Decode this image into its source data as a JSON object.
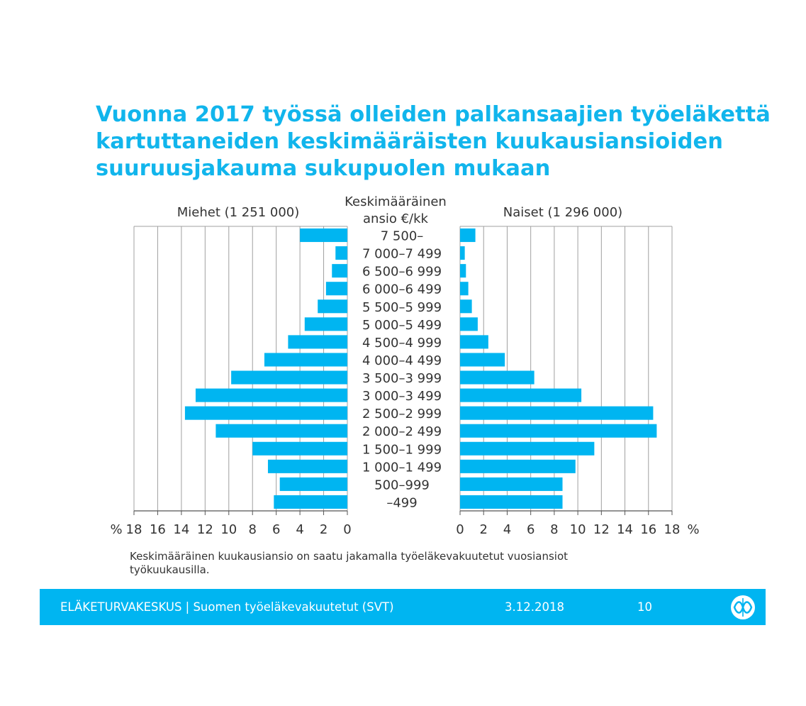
{
  "slide": {
    "title_lines": [
      "Vuonna 2017 työssä olleiden palkansaajien työeläkettä",
      "kartuttaneiden keskimääräisten kuukausiansioiden",
      "suuruusjakauma sukupuolen mukaan"
    ],
    "footnote_lines": [
      "Keskimääräinen kuukausiansio on saatu jakamalla työeläkevakuutetut vuosiansiot",
      "työkuukausilla."
    ]
  },
  "footer": {
    "organization": "ELÄKETURVAKESKUS | Suomen työeläkevakuutetut (SVT)",
    "date": "3.12.2018",
    "page_number": "10",
    "logo_icon": "eto-logo-icon"
  },
  "chart_data": {
    "type": "bar",
    "orientation": "horizontal",
    "layout": "population-pyramid",
    "center_label_lines": [
      "Keskimääräinen",
      "ansio €/kk"
    ],
    "categories": [
      "7 500–",
      "7 000–7 499",
      "6 500–6 999",
      "6 000–6 499",
      "5 500–5 999",
      "5 000–5 499",
      "4 500–4 999",
      "4 000–4 499",
      "3 500–3 999",
      "3 000–3 499",
      "2 500–2 999",
      "2 000–2 499",
      "1 500–1 999",
      "1 000–1 499",
      "500–999",
      "–499"
    ],
    "series": [
      {
        "name": "Miehet (1 251 000)",
        "side": "left",
        "values": [
          4.0,
          1.0,
          1.3,
          1.8,
          2.5,
          3.6,
          5.0,
          7.0,
          9.8,
          12.8,
          13.7,
          11.1,
          8.0,
          6.7,
          5.7,
          6.2
        ]
      },
      {
        "name": "Naiset (1 296 000)",
        "side": "right",
        "values": [
          1.3,
          0.4,
          0.5,
          0.7,
          1.0,
          1.5,
          2.4,
          3.8,
          6.3,
          10.3,
          16.4,
          16.7,
          11.4,
          9.8,
          8.7,
          8.7
        ]
      }
    ],
    "xlim": [
      0,
      18
    ],
    "ticks": [
      "18",
      "16",
      "14",
      "12",
      "10",
      "8",
      "6",
      "4",
      "2",
      "0"
    ],
    "ticks_right": [
      "0",
      "2",
      "4",
      "6",
      "8",
      "10",
      "12",
      "14",
      "16",
      "18"
    ],
    "unit": "%",
    "grid": true,
    "bar_color": "#00b5f1"
  }
}
